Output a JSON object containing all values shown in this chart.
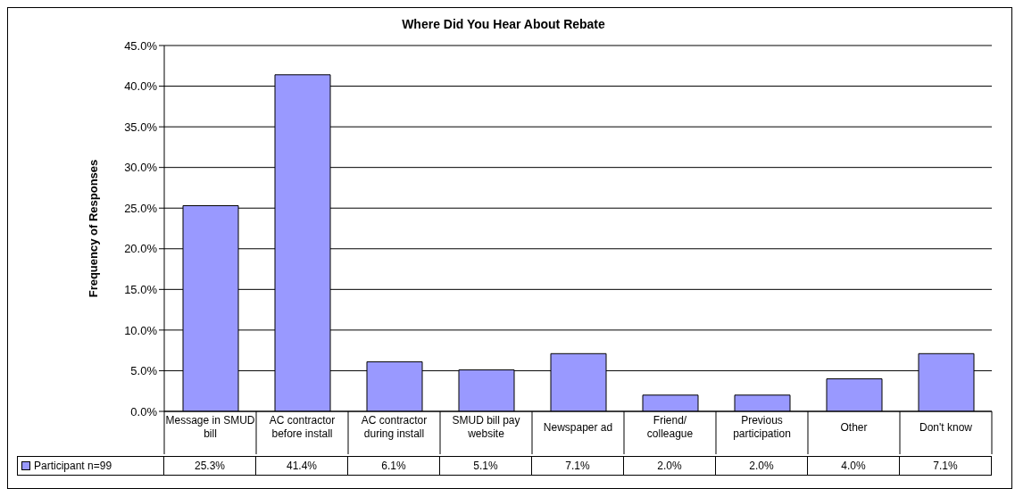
{
  "chart_data": {
    "type": "bar",
    "title": "Where Did You Hear About Rebate",
    "ylabel": "Frequency of Responses",
    "categories": [
      "Message in SMUD bill",
      "AC contractor before install",
      "AC contractor during install",
      "SMUD bill pay website",
      "Newspaper ad",
      "Friend/ colleague",
      "Previous participation",
      "Other",
      "Don't know"
    ],
    "series": [
      {
        "name": "Participant n=99",
        "color": "#9999ff",
        "values": [
          25.3,
          41.4,
          6.1,
          5.1,
          7.1,
          2.0,
          2.0,
          4.0,
          7.1
        ]
      }
    ],
    "value_labels": [
      "25.3%",
      "41.4%",
      "6.1%",
      "5.1%",
      "7.1%",
      "2.0%",
      "2.0%",
      "4.0%",
      "7.1%"
    ],
    "ylim": [
      0,
      45
    ],
    "yticks": [
      {
        "value": 0,
        "label": "0.0%"
      },
      {
        "value": 5,
        "label": "5.0%"
      },
      {
        "value": 10,
        "label": "10.0%"
      },
      {
        "value": 15,
        "label": "15.0%"
      },
      {
        "value": 20,
        "label": "20.0%"
      },
      {
        "value": 25,
        "label": "25.0%"
      },
      {
        "value": 30,
        "label": "30.0%"
      },
      {
        "value": 35,
        "label": "35.0%"
      },
      {
        "value": 40,
        "label": "40.0%"
      },
      {
        "value": 45,
        "label": "45.0%"
      }
    ],
    "grid": "y",
    "legend": "bottom left"
  }
}
